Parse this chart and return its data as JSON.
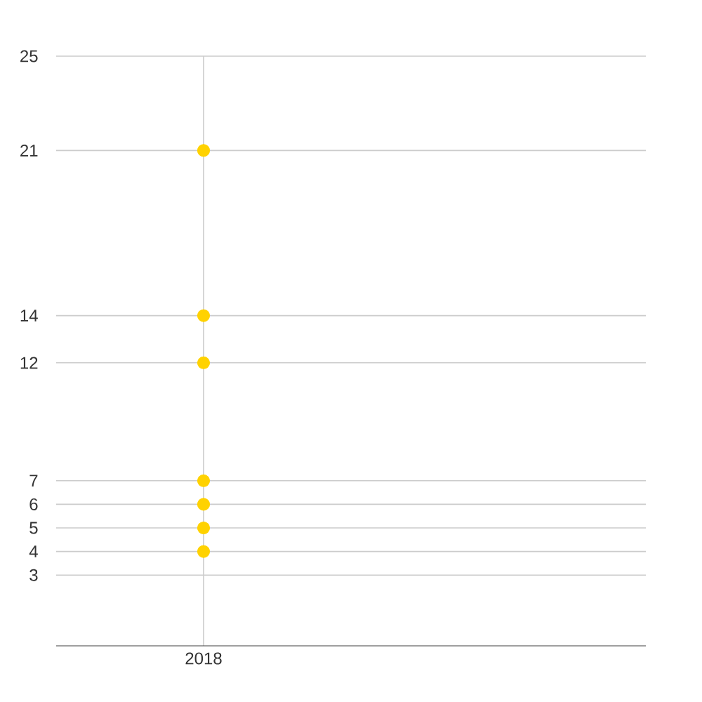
{
  "chart_data": {
    "type": "scatter",
    "categories": [
      "2018"
    ],
    "series": [
      {
        "color": "#ffd200",
        "values": [
          21
        ]
      },
      {
        "color": "#ffd200",
        "values": [
          14
        ]
      },
      {
        "color": "#ffd200",
        "values": [
          12
        ]
      },
      {
        "color": "#ffd200",
        "values": [
          7
        ]
      },
      {
        "color": "#ffd200",
        "values": [
          6
        ]
      },
      {
        "color": "#ffd200",
        "values": [
          5
        ]
      },
      {
        "color": "#ffd200",
        "values": [
          4
        ]
      }
    ],
    "ylim": [
      0,
      25
    ],
    "yticks": [
      3,
      4,
      5,
      6,
      7,
      12,
      14,
      21,
      25
    ],
    "grid": true
  }
}
